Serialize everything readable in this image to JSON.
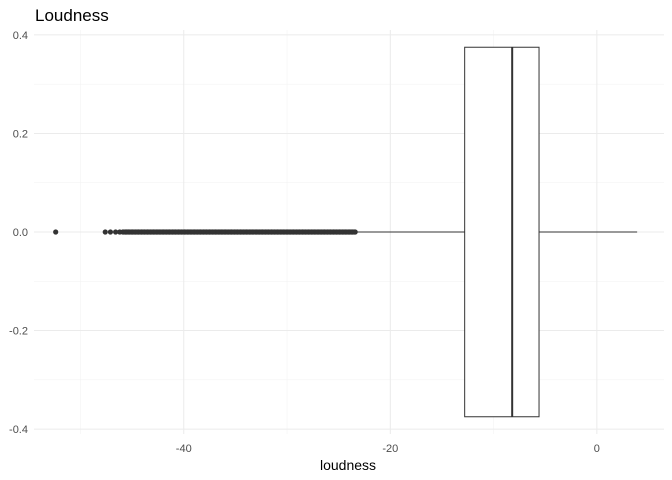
{
  "chart_data": {
    "type": "boxplot",
    "title": "Loudness",
    "xlabel": "loudness",
    "ylabel": "",
    "xlim": [
      -54.5,
      6.5
    ],
    "ylim": [
      -0.41,
      0.41
    ],
    "x_ticks": [
      -40,
      -20,
      0
    ],
    "x_tick_labels": [
      "-40",
      "-20",
      "0"
    ],
    "y_ticks": [
      0.4,
      0.2,
      0.0,
      -0.2,
      -0.4
    ],
    "y_tick_labels": [
      "0.4",
      "0.2",
      "0.0",
      "-0.2",
      "-0.4"
    ],
    "grid": true,
    "box": {
      "min_whisker": -23.2,
      "q1": -12.8,
      "median": -8.2,
      "q3": -5.6,
      "max_whisker": 3.9,
      "y_center": 0.0,
      "half_height": 0.375
    },
    "outliers": [
      -52.4,
      -47.6,
      -47.1,
      -46.6,
      -46.2,
      -45.9,
      -45.6,
      -45.3,
      -45.0,
      -44.7,
      -44.4,
      -44.1,
      -43.8,
      -43.5,
      -43.2,
      -42.9,
      -42.6,
      -42.3,
      -42.0,
      -41.7,
      -41.4,
      -41.1,
      -40.8,
      -40.5,
      -40.2,
      -39.9,
      -39.6,
      -39.3,
      -39.0,
      -38.7,
      -38.4,
      -38.1,
      -37.8,
      -37.5,
      -37.2,
      -36.9,
      -36.6,
      -36.3,
      -36.0,
      -35.7,
      -35.4,
      -35.1,
      -34.8,
      -34.5,
      -34.2,
      -33.9,
      -33.6,
      -33.3,
      -33.0,
      -32.7,
      -32.4,
      -32.1,
      -31.8,
      -31.5,
      -31.2,
      -30.9,
      -30.6,
      -30.3,
      -30.0,
      -29.7,
      -29.4,
      -29.1,
      -28.8,
      -28.5,
      -28.2,
      -27.9,
      -27.6,
      -27.3,
      -27.0,
      -26.7,
      -26.4,
      -26.1,
      -25.8,
      -25.5,
      -25.2,
      -24.9,
      -24.6,
      -24.3,
      -24.0,
      -23.7,
      -23.4
    ]
  }
}
